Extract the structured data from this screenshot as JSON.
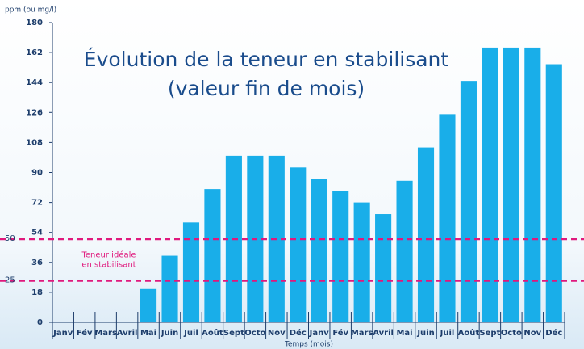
{
  "chart_data": {
    "type": "bar",
    "title": "Évolution de la teneur en stabilisant",
    "subtitle": "(valeur fin de mois)",
    "y_label": "ppm (ou mg/l)",
    "x_label": "Temps (mois)",
    "categories": [
      "Janv",
      "Fév",
      "Mars",
      "Avril",
      "Mai",
      "Juin",
      "Juil",
      "Août",
      "Sept",
      "Octo",
      "Nov",
      "Déc",
      "Janv",
      "Fév",
      "Mars",
      "Avril",
      "Mai",
      "Juin",
      "Juil",
      "Août",
      "Sept",
      "Octo",
      "Nov",
      "Déc"
    ],
    "values": [
      0,
      0,
      0,
      0,
      20,
      40,
      60,
      80,
      100,
      100,
      100,
      93,
      86,
      79,
      72,
      65,
      85,
      105,
      125,
      145,
      165,
      165,
      165,
      155
    ],
    "color": "#19aee9",
    "ylim": [
      0,
      180
    ],
    "yticks": [
      0,
      18,
      36,
      54,
      72,
      90,
      108,
      126,
      144,
      162,
      180
    ],
    "reference_lines": [
      50,
      25
    ],
    "reference_color": "#e0197d",
    "annotation": [
      "Teneur idéale",
      "en stabilisant"
    ]
  }
}
